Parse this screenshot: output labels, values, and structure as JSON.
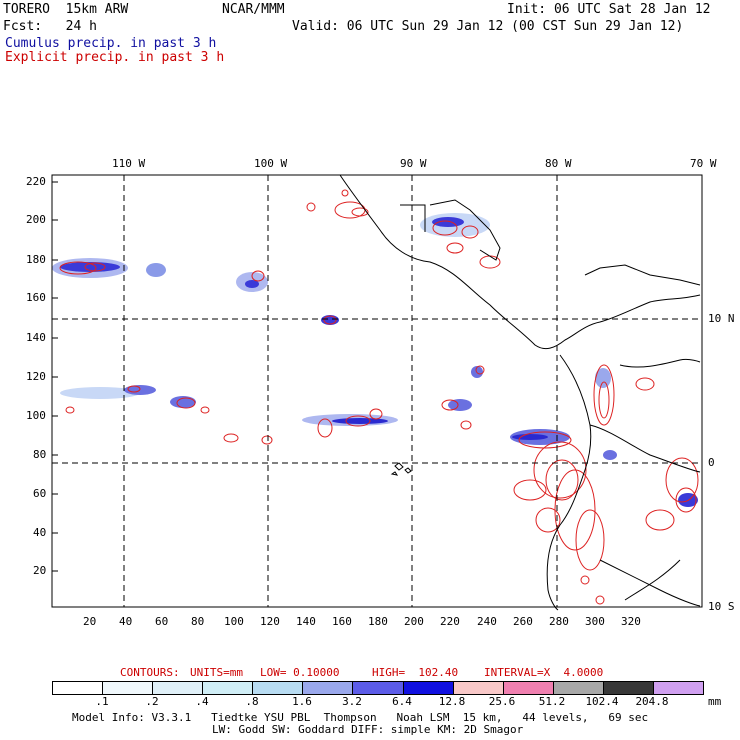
{
  "header": {
    "model": "TORERO  15km ARW",
    "org": "NCAR/MMM",
    "init": "Init: 06 UTC Sat 28 Jan 12",
    "fcst": "Fcst:   24 h",
    "valid": "Valid: 06 UTC Sun 29 Jan 12 (00 CST Sun 29 Jan 12)",
    "line1": "Cumulus precip. in past 3 h",
    "line2": "Explicit precip. in past 3 h"
  },
  "axes": {
    "top_lon_labels": [
      "110 W",
      "100 W",
      "90 W",
      "80 W",
      "70 W"
    ],
    "right_lat_labels": [
      "10 N",
      "0",
      "10 S"
    ],
    "left_ticks": [
      "220",
      "200",
      "180",
      "160",
      "140",
      "120",
      "100",
      "80",
      "60",
      "40",
      "20"
    ],
    "bottom_ticks": [
      "20",
      "40",
      "60",
      "80",
      "100",
      "120",
      "140",
      "160",
      "180",
      "200",
      "220",
      "240",
      "260",
      "280",
      "300",
      "320"
    ]
  },
  "contours": {
    "label": "CONTOURS:",
    "units": "UNITS=mm",
    "low": "LOW= 0.10000",
    "high": "HIGH=  102.40",
    "interval": "INTERVAL=X  4.0000"
  },
  "colorbar": {
    "levels": [
      ".1",
      ".2",
      ".4",
      ".8",
      "1.6",
      "3.2",
      "6.4",
      "12.8",
      "25.6",
      "51.2",
      "102.4",
      "204.8"
    ],
    "unit": "mm",
    "colors": [
      "#ffffff",
      "#f0f8fc",
      "#e0f0f8",
      "#d0eef6",
      "#b8dcf2",
      "#9aa8ec",
      "#5c5ce8",
      "#1010e0",
      "#f8c8c8",
      "#f080b0",
      "#a8a8a8",
      "#383838",
      "#d0a0f0"
    ]
  },
  "footer": {
    "line1": "Model Info: V3.3.1   Tiedtke YSU PBL  Thompson   Noah LSM  15 km,   44 levels,   69 sec",
    "line2": "LW: Godd SW: Goddard DIFF: simple KM: 2D Smagor"
  }
}
